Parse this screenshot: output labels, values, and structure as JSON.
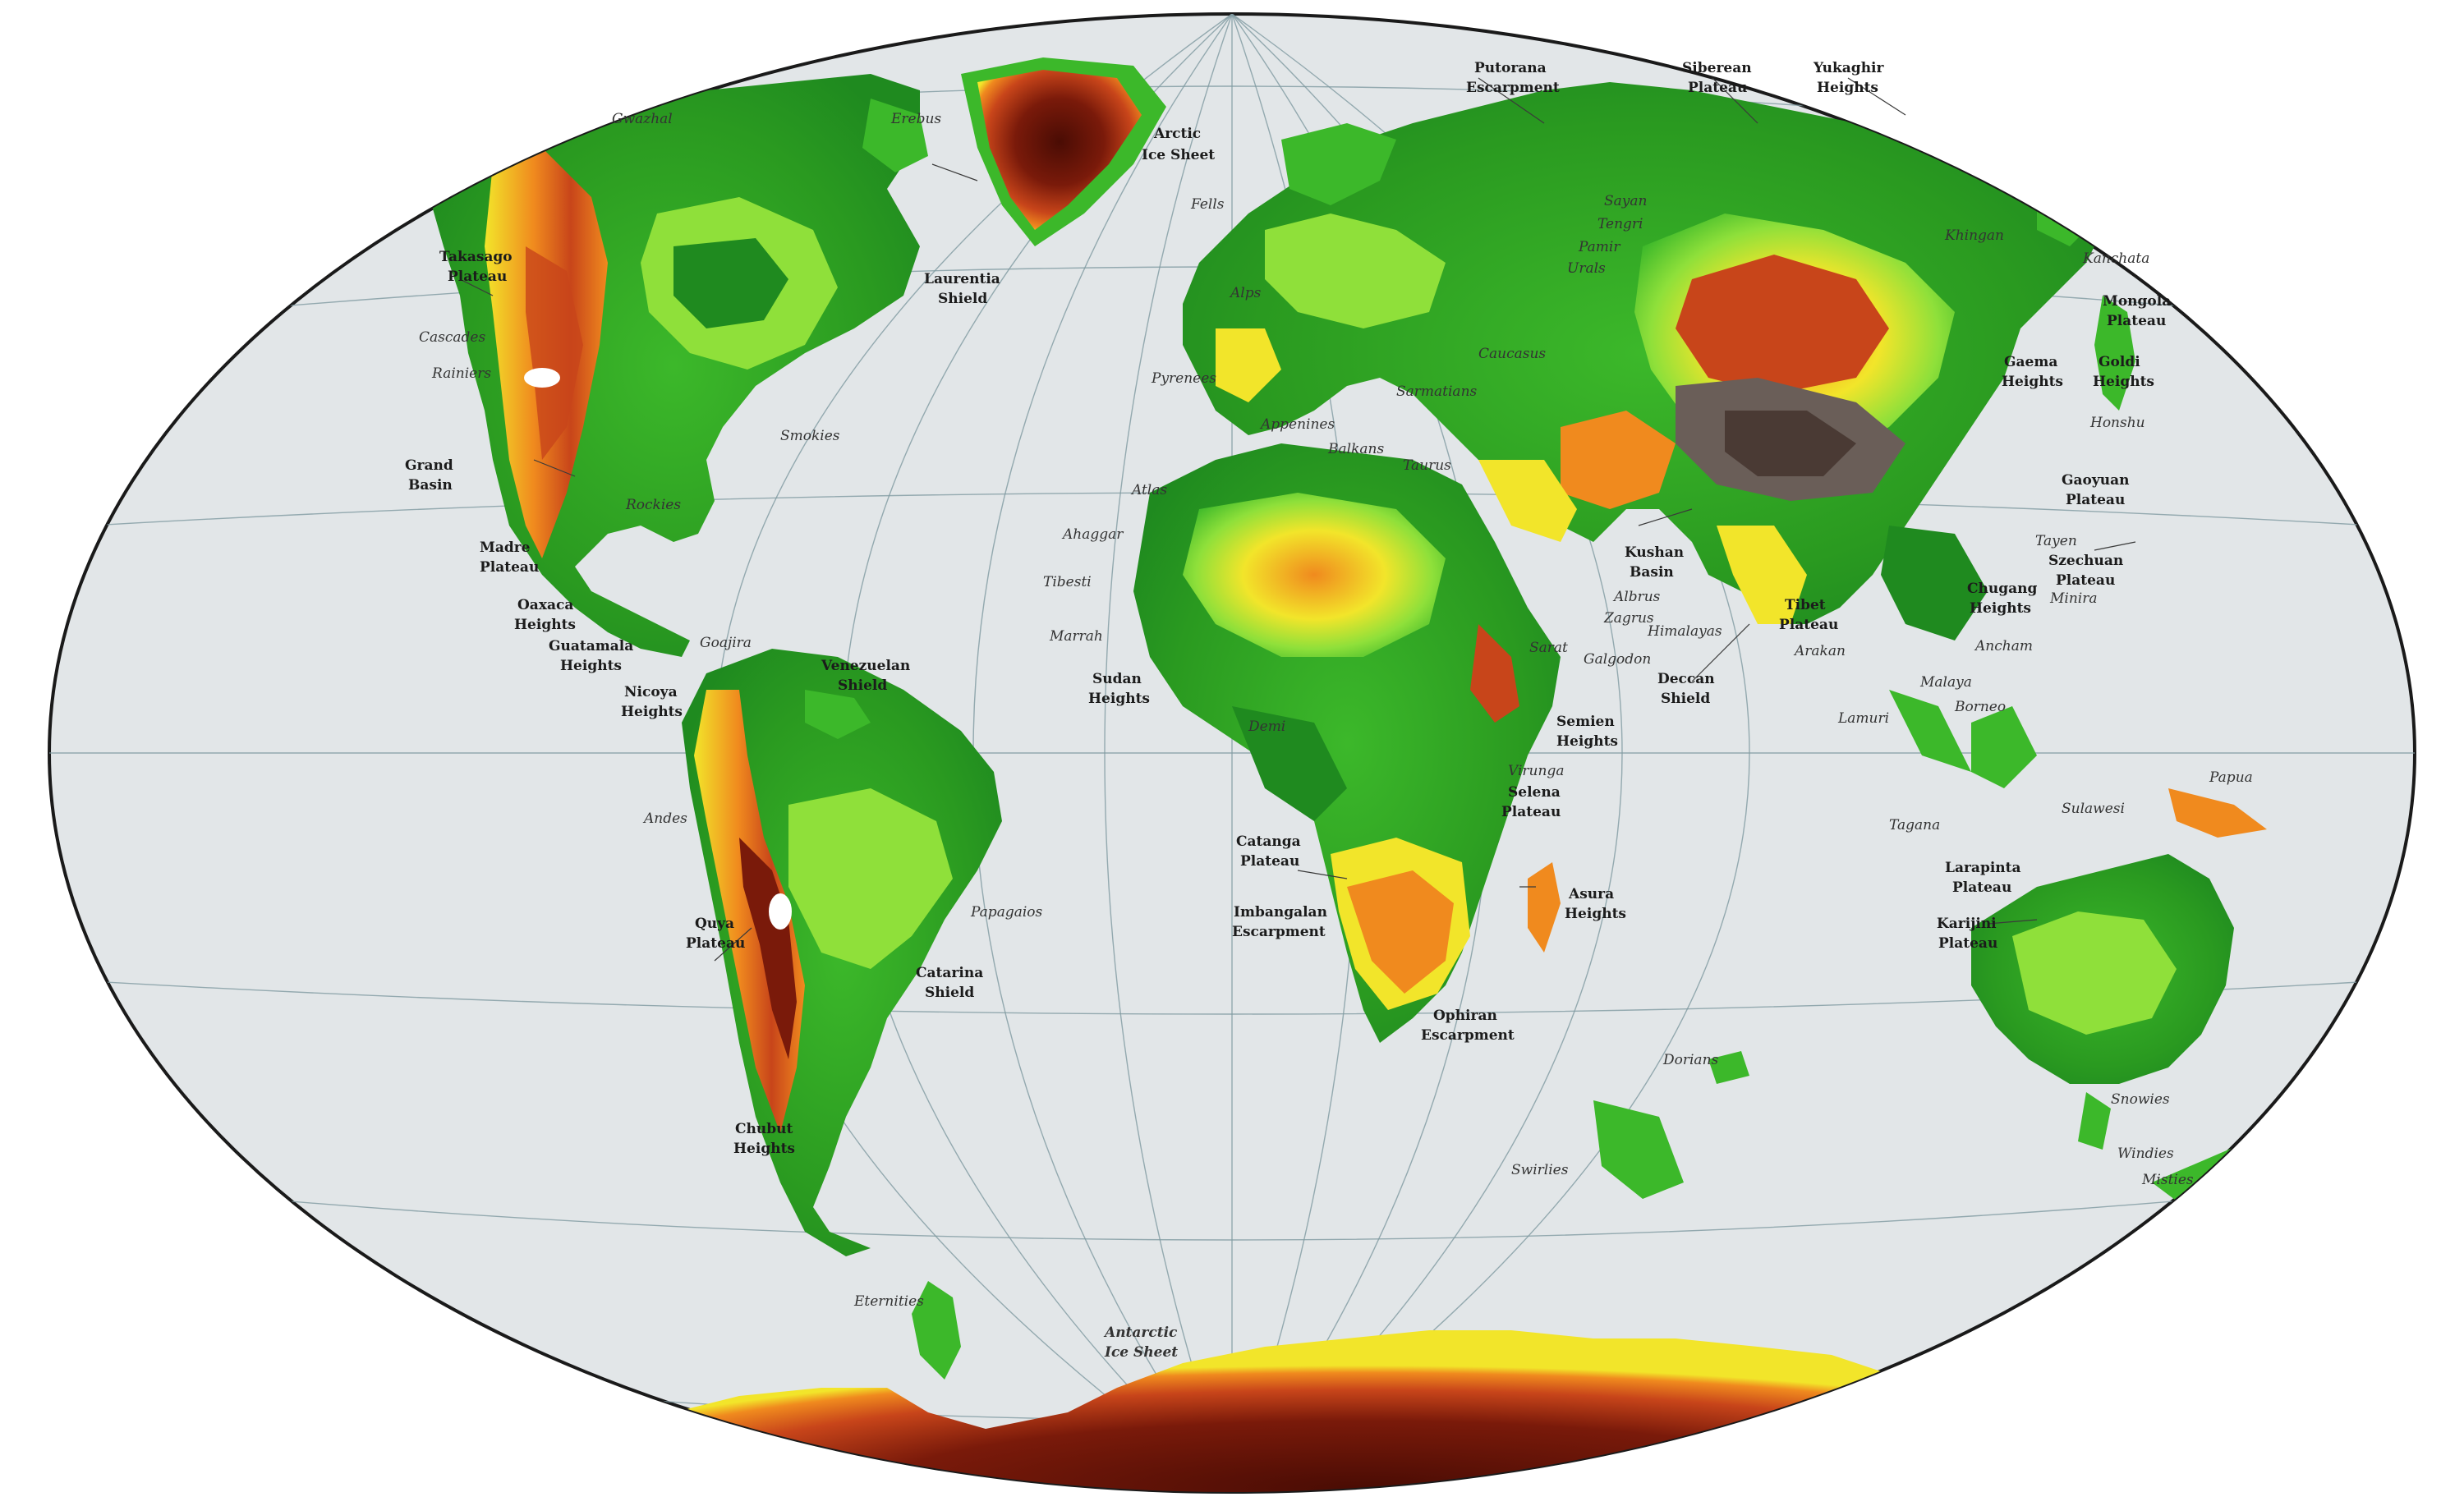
{
  "colors": {
    "ocean": "#e2e6e8",
    "outline": "#1a1a1a",
    "lowland": "#1f8a1f",
    "green": "#3cb82a",
    "lightgreen": "#8fe03a",
    "yellow": "#f2e52a",
    "orange": "#f08a1e",
    "red": "#c8451a",
    "brown": "#7a1a0a",
    "darkbrown": "#4a0c04",
    "highgray": "#6a5e58",
    "snow": "#ffffff"
  },
  "labels": {
    "gwazhal": "Gwazhal",
    "erebus": "Erebus",
    "arctic_ice_sheet_1": "Arctic",
    "arctic_ice_sheet_2": "Ice Sheet",
    "putorana_1": "Putorana",
    "putorana_2": "Escarpment",
    "siberean_1": "Siberean",
    "siberean_2": "Plateau",
    "yukaghir_1": "Yukaghir",
    "yukaghir_2": "Heights",
    "fells": "Fells",
    "sayan": "Sayan",
    "tengri": "Tengri",
    "pamir": "Pamir",
    "urals": "Urals",
    "khingan": "Khingan",
    "kanchata": "Kanchata",
    "takasago_1": "Takasago",
    "takasago_2": "Plateau",
    "laurentia_1": "Laurentia",
    "laurentia_2": "Shield",
    "alps": "Alps",
    "mongola_1": "Mongola",
    "mongola_2": "Plateau",
    "cascades": "Cascades",
    "caucasus": "Caucasus",
    "gaema_1": "Gaema",
    "gaema_2": "Heights",
    "goldi_1": "Goldi",
    "goldi_2": "Heights",
    "rainiers": "Rainiers",
    "pyrenees": "Pyrenees",
    "sarmatians": "Sarmatians",
    "honshu": "Honshu",
    "smokies": "Smokies",
    "appenines": "Appenines",
    "balkans": "Balkans",
    "taurus": "Taurus",
    "grand_basin_1": "Grand",
    "grand_basin_2": "Basin",
    "gaoyuan_1": "Gaoyuan",
    "gaoyuan_2": "Plateau",
    "atlas": "Atlas",
    "rockies": "Rockies",
    "ahaggar": "Ahaggar",
    "madre_1": "Madre",
    "madre_2": "Plateau",
    "kushan_1": "Kushan",
    "kushan_2": "Basin",
    "tayen": "Tayen",
    "szechuan_1": "Szechuan",
    "szechuan_2": "Plateau",
    "tibesti": "Tibesti",
    "oaxaca_1": "Oaxaca",
    "oaxaca_2": "Heights",
    "albrus": "Albrus",
    "zagrus": "Zagrus",
    "tibet_1": "Tibet",
    "tibet_2": "Plateau",
    "chugang_1": "Chugang",
    "chugang_2": "Heights",
    "minira": "Minira",
    "marrah": "Marrah",
    "guatamala_1": "Guatamala",
    "guatamala_2": "Heights",
    "himalayas": "Himalayas",
    "goajira": "Goajira",
    "ancham": "Ancham",
    "sarat": "Sarat",
    "arakan": "Arakan",
    "venezuelan_1": "Venezuelan",
    "venezuelan_2": "Shield",
    "galgodon": "Galgodon",
    "sudan_1": "Sudan",
    "sudan_2": "Heights",
    "nicoya_1": "Nicoya",
    "nicoya_2": "Heights",
    "malaya": "Malaya",
    "deccan_1": "Deccan",
    "deccan_2": "Shield",
    "borneo": "Borneo",
    "lamuri": "Lamuri",
    "semien_1": "Semien",
    "semien_2": "Heights",
    "demi": "Demi",
    "virunga": "Virunga",
    "papua": "Papua",
    "selena_1": "Selena",
    "selena_2": "Plateau",
    "andes": "Andes",
    "sulawesi": "Sulawesi",
    "tagana": "Tagana",
    "catanga_1": "Catanga",
    "catanga_2": "Plateau",
    "larapinta_1": "Larapinta",
    "larapinta_2": "Plateau",
    "asura_1": "Asura",
    "asura_2": "Heights",
    "imbangalan_1": "Imbangalan",
    "imbangalan_2": "Escarpment",
    "papagaios": "Papagaios",
    "quya_1": "Quya",
    "quya_2": "Plateau",
    "karijini_1": "Karijini",
    "karijini_2": "Plateau",
    "catarina_1": "Catarina",
    "catarina_2": "Shield",
    "ophiran_1": "Ophiran",
    "ophiran_2": "Escarpment",
    "dorians": "Dorians",
    "snowies": "Snowies",
    "chubut_1": "Chubut",
    "chubut_2": "Heights",
    "windies": "Windies",
    "swirlies": "Swirlies",
    "misties": "Misties",
    "eternities": "Eternities",
    "antarctic_1": "Antarctic",
    "antarctic_2": "Ice Sheet"
  }
}
